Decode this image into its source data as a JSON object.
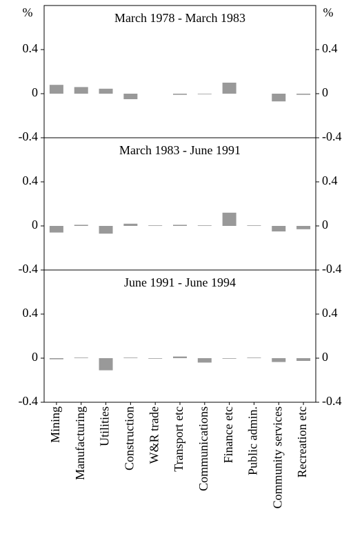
{
  "chart_data": [
    {
      "type": "bar",
      "title": "March 1978 - March 1983",
      "ylabel": "%",
      "y2label": "%",
      "color": "#999999",
      "values": [
        0.08,
        0.06,
        0.045,
        -0.05,
        0,
        -0.01,
        -0.005,
        0.1,
        0,
        -0.07,
        -0.01
      ],
      "ylim": [
        -0.4,
        0.8
      ],
      "yticks": [
        -0.4,
        0,
        0.4
      ]
    },
    {
      "type": "bar",
      "title": "March 1983 - June 1991",
      "color": "#999999",
      "values": [
        -0.06,
        0.01,
        -0.07,
        0.02,
        0.005,
        0.01,
        0.005,
        0.12,
        0.005,
        -0.05,
        -0.03
      ],
      "ylim": [
        -0.4,
        0.8
      ],
      "yticks": [
        -0.4,
        0,
        0.4
      ]
    },
    {
      "type": "bar",
      "title": "June 1991 - June 1994",
      "color": "#999999",
      "categories": [
        "Mining",
        "Manufacturing",
        "Utilities",
        "Construction",
        "W&R trade",
        "Transport etc",
        "Communications",
        "Finance etc",
        "Public admin.",
        "Community services",
        "Recreation etc"
      ],
      "values": [
        -0.01,
        0.005,
        -0.11,
        0.005,
        -0.005,
        0.015,
        -0.04,
        -0.005,
        0.005,
        -0.035,
        -0.025
      ],
      "ylim": [
        -0.4,
        0.8
      ],
      "yticks": [
        -0.4,
        0,
        0.4
      ]
    }
  ]
}
